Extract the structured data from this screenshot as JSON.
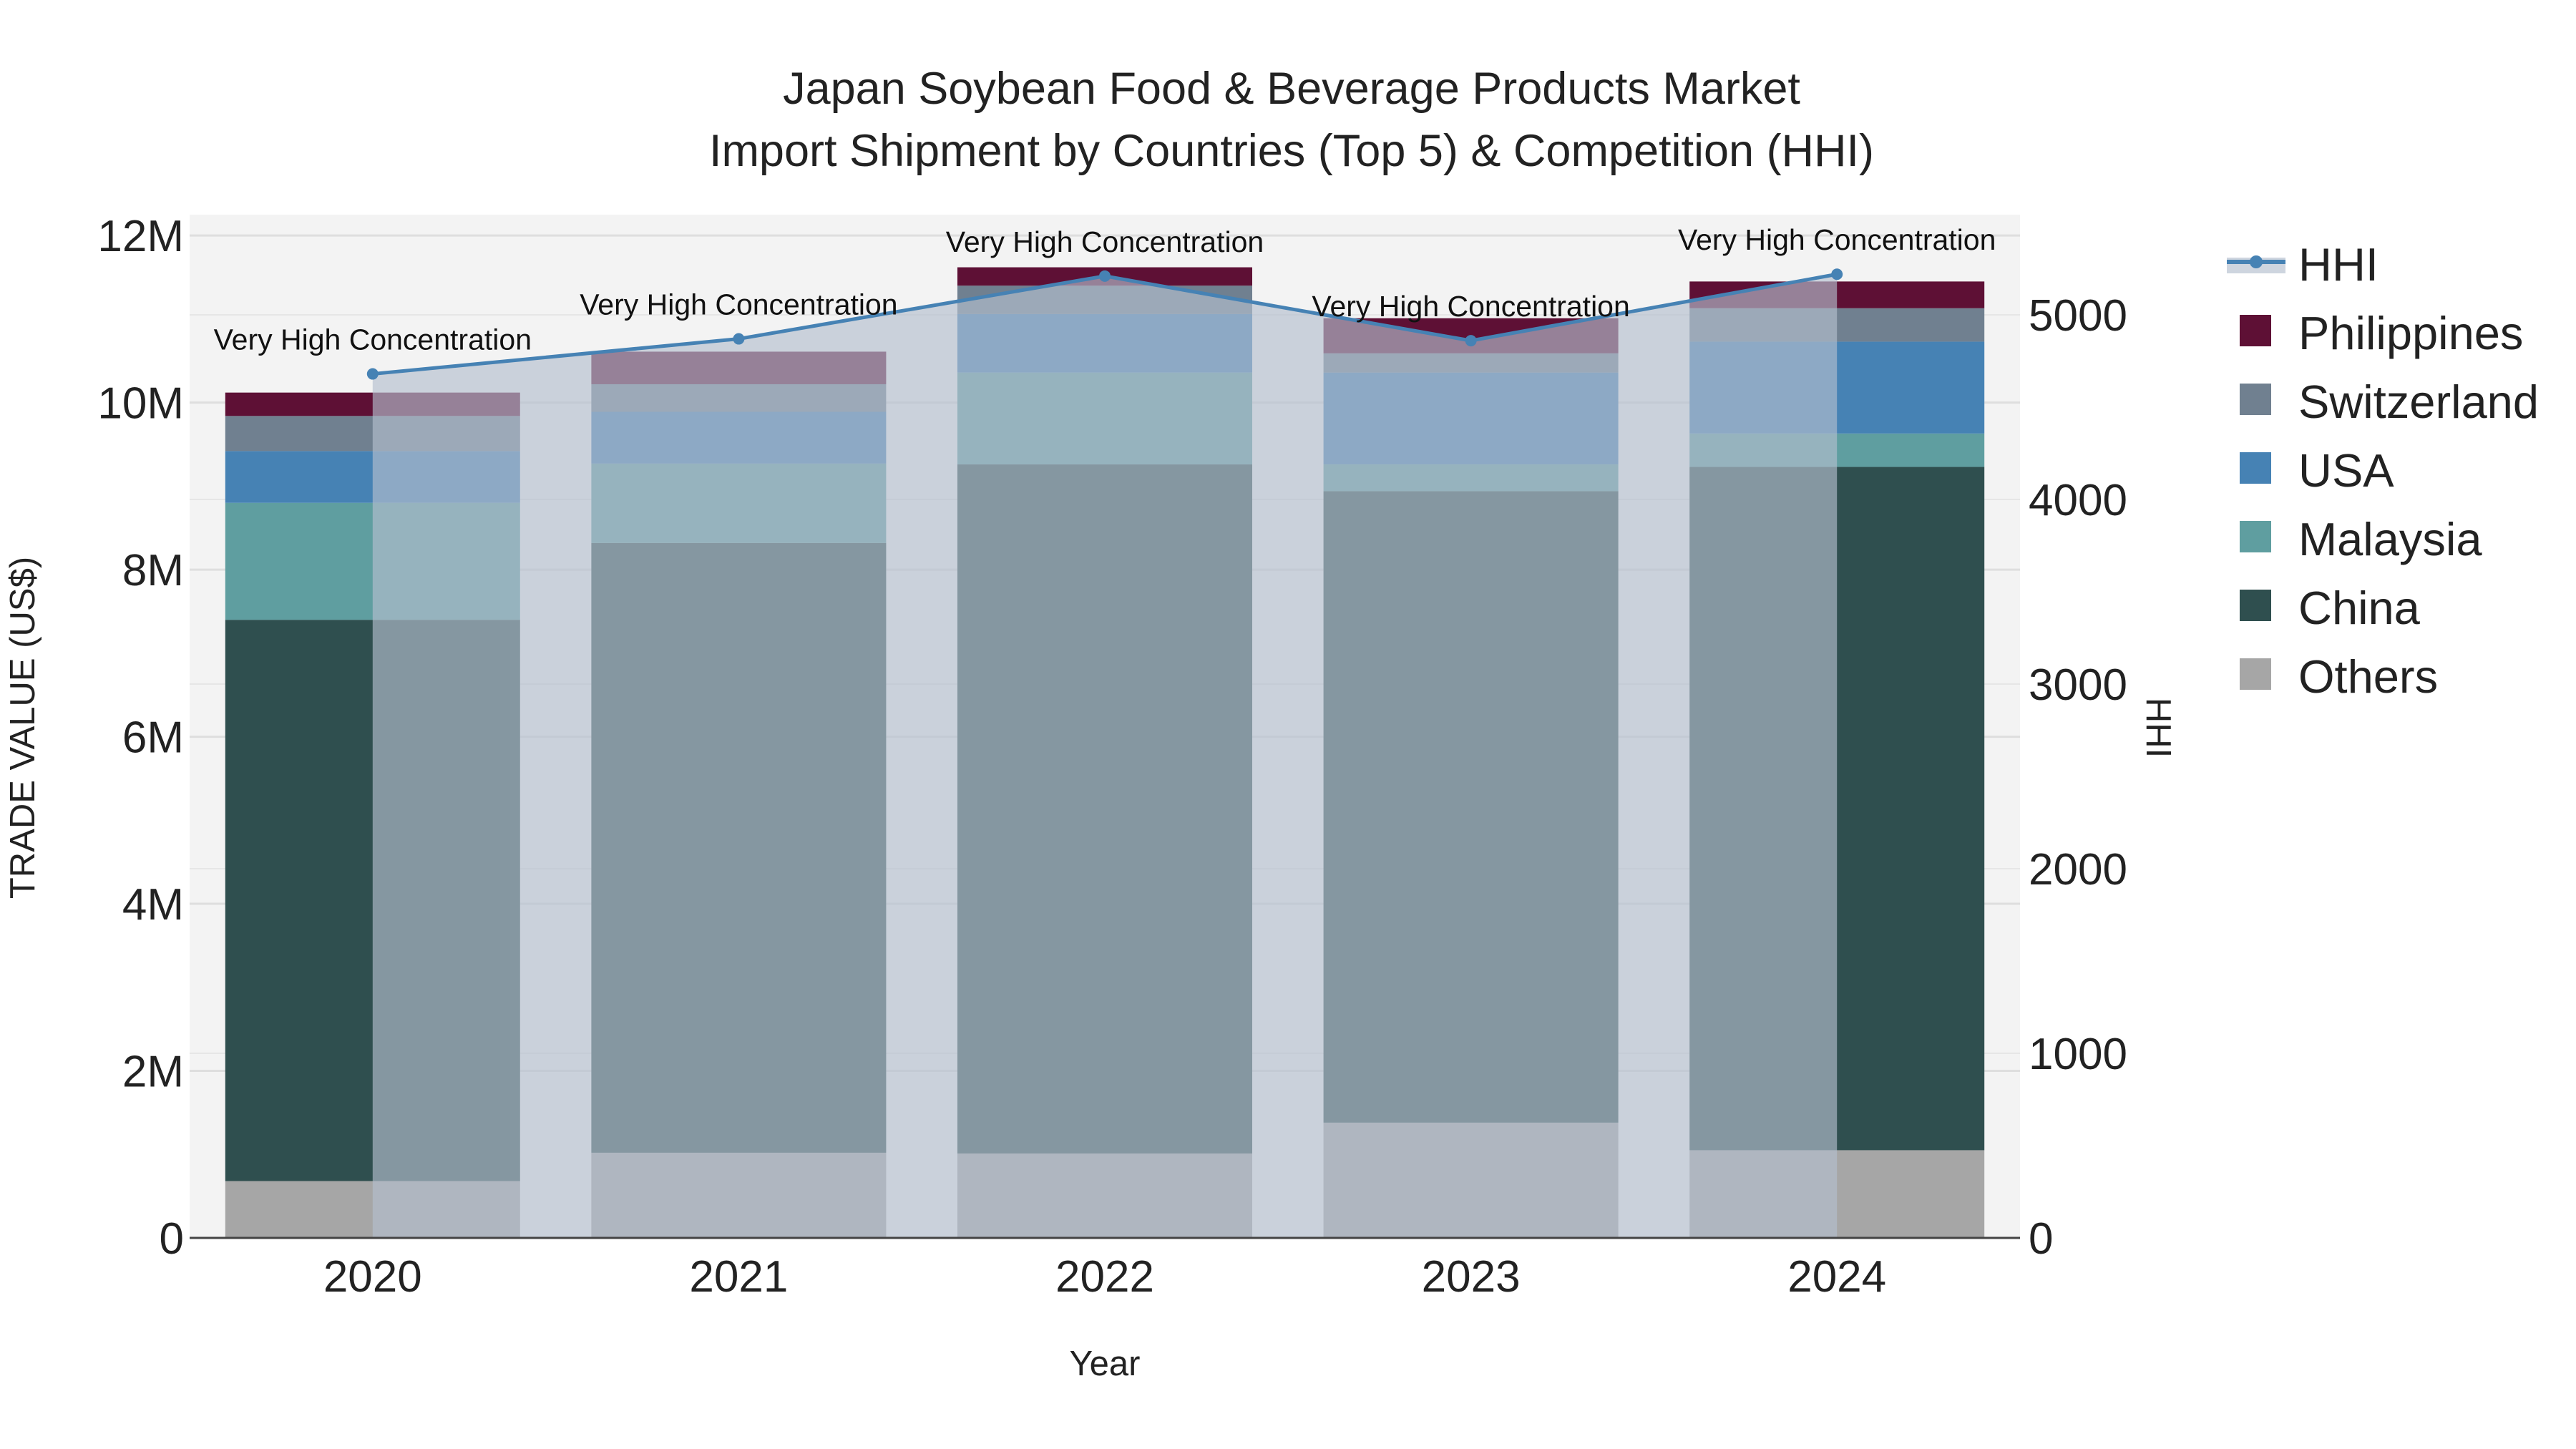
{
  "chart_data": {
    "type": "bar",
    "stacked": true,
    "title_line1": "Japan Soybean Food & Beverage Products Market",
    "title_line2": "Import Shipment by Countries (Top 5) & Competition (HHI)",
    "xlabel": "Year",
    "ylabel": "TRADE VALUE (US$)",
    "y2label": "HHI",
    "categories": [
      "2020",
      "2021",
      "2022",
      "2023",
      "2024"
    ],
    "ylim": [
      0,
      12000000
    ],
    "y_ticks": [
      {
        "value": 0,
        "label": "0"
      },
      {
        "value": 2000000,
        "label": "2M"
      },
      {
        "value": 4000000,
        "label": "4M"
      },
      {
        "value": 6000000,
        "label": "6M"
      },
      {
        "value": 8000000,
        "label": "8M"
      },
      {
        "value": 10000000,
        "label": "10M"
      },
      {
        "value": 12000000,
        "label": "12M"
      }
    ],
    "y2lim": [
      0,
      5500
    ],
    "y2_ticks": [
      {
        "value": 0,
        "label": "0"
      },
      {
        "value": 1000,
        "label": "1000"
      },
      {
        "value": 2000,
        "label": "2000"
      },
      {
        "value": 3000,
        "label": "3000"
      },
      {
        "value": 4000,
        "label": "4000"
      },
      {
        "value": 5000,
        "label": "5000"
      }
    ],
    "series": [
      {
        "name": "Others",
        "color": "#a6a6a6",
        "values": [
          680000,
          1020000,
          1010000,
          1380000,
          1050000
        ]
      },
      {
        "name": "China",
        "color": "#2f4f4f",
        "values": [
          6720000,
          7300000,
          8250000,
          7560000,
          8180000
        ]
      },
      {
        "name": "Malaysia",
        "color": "#5f9ea0",
        "values": [
          1400000,
          950000,
          1100000,
          320000,
          400000
        ]
      },
      {
        "name": "USA",
        "color": "#4682b4",
        "values": [
          620000,
          620000,
          700000,
          1100000,
          1100000
        ]
      },
      {
        "name": "Switzerland",
        "color": "#708090",
        "values": [
          420000,
          330000,
          340000,
          230000,
          400000
        ]
      },
      {
        "name": "Philippines",
        "color": "#5e1035",
        "values": [
          280000,
          390000,
          220000,
          420000,
          320000
        ]
      }
    ],
    "hhi": {
      "name": "HHI",
      "color": "#4682b4",
      "values": [
        4680,
        4870,
        5210,
        4860,
        5220
      ],
      "labels": [
        "Very High Concentration",
        "Very High Concentration",
        "Very High Concentration",
        "Very High Concentration",
        "Very High Concentration"
      ]
    },
    "legend_order": [
      "HHI",
      "Philippines",
      "Switzerland",
      "USA",
      "Malaysia",
      "China",
      "Others"
    ]
  }
}
